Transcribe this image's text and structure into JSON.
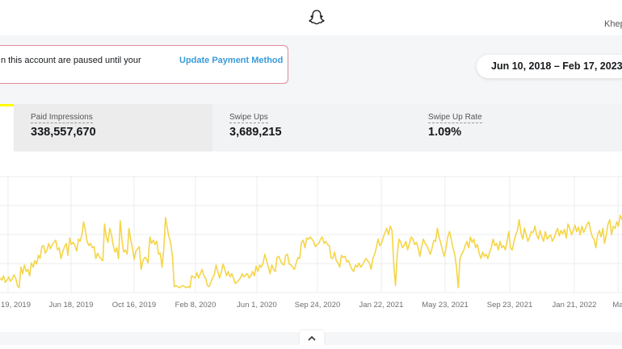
{
  "header": {
    "logo_icon": "snapchat-ghost-icon",
    "user_name": "Khep"
  },
  "alert": {
    "message": "n this account are paused until your",
    "link_label": "Update Payment Method",
    "border_color": "#e38a9a",
    "link_color": "#3a9bd9"
  },
  "date_range": {
    "label": "Jun 10, 2018 – Feb 17, 2023"
  },
  "metrics": [
    {
      "label": "Paid Impressions",
      "value": "338,557,670"
    },
    {
      "label": "Swipe Ups",
      "value": "3,689,215"
    },
    {
      "label": "Swipe Up Rate",
      "value": "1.09%"
    }
  ],
  "chart_data": {
    "type": "line",
    "line_color": "#f5d547",
    "grid": true,
    "x_ticks": [
      "19, 2019",
      "Jun 18, 2019",
      "Oct 16, 2019",
      "Feb 8, 2020",
      "Jun 1, 2020",
      "Sep 24, 2020",
      "Jan 22, 2021",
      "May 23, 2021",
      "Sep 23, 2021",
      "Jan 21, 2022",
      "Ma"
    ],
    "series": [
      {
        "values": [
          0.12,
          0.1,
          0.14,
          0.08,
          0.1,
          0.13,
          0.09,
          0.11,
          0.15,
          0.12,
          0.05,
          0.03,
          0.22,
          0.16,
          0.24,
          0.18,
          0.2,
          0.14,
          0.26,
          0.22,
          0.28,
          0.25,
          0.33,
          0.3,
          0.41,
          0.42,
          0.35,
          0.38,
          0.44,
          0.39,
          0.43,
          0.45,
          0.47,
          0.38,
          0.4,
          0.3,
          0.36,
          0.41,
          0.44,
          0.33,
          0.49,
          0.43,
          0.45,
          0.42,
          0.37,
          0.48,
          0.46,
          0.52,
          0.64,
          0.56,
          0.46,
          0.42,
          0.44,
          0.4,
          0.41,
          0.3,
          0.35,
          0.32,
          0.3,
          0.28,
          0.62,
          0.5,
          0.45,
          0.58,
          0.52,
          0.42,
          0.36,
          0.4,
          0.3,
          0.65,
          0.47,
          0.36,
          0.38,
          0.34,
          0.58,
          0.48,
          0.4,
          0.29,
          0.37,
          0.39,
          0.41,
          0.2,
          0.28,
          0.31,
          0.3,
          0.26,
          0.5,
          0.44,
          0.47,
          0.43,
          0.46,
          0.34,
          0.35,
          0.22,
          0.38,
          0.68,
          0.58,
          0.5,
          0.44,
          0.32,
          0.04,
          0.05,
          0.04,
          0.03,
          0.04,
          0.05,
          0.04,
          0.03,
          0.04,
          0.03,
          0.14,
          0.13,
          0.12,
          0.17,
          0.12,
          0.16,
          0.2,
          0.14,
          0.12,
          0.05,
          0.04,
          0.08,
          0.12,
          0.15,
          0.24,
          0.18,
          0.12,
          0.17,
          0.25,
          0.2,
          0.14,
          0.18,
          0.13,
          0.16,
          0.12,
          0.07,
          0.08,
          0.1,
          0.12,
          0.16,
          0.13,
          0.15,
          0.16,
          0.12,
          0.14,
          0.18,
          0.14,
          0.23,
          0.18,
          0.24,
          0.22,
          0.26,
          0.34,
          0.28,
          0.22,
          0.16,
          0.24,
          0.2,
          0.18,
          0.31,
          0.32,
          0.28,
          0.25,
          0.24,
          0.33,
          0.34,
          0.25,
          0.24,
          0.22,
          0.2,
          0.26,
          0.31,
          0.3,
          0.45,
          0.47,
          0.4,
          0.49,
          0.48,
          0.5,
          0.48,
          0.46,
          0.41,
          0.43,
          0.44,
          0.48,
          0.5,
          0.44,
          0.46,
          0.43,
          0.42,
          0.31,
          0.3,
          0.36,
          0.28,
          0.26,
          0.22,
          0.33,
          0.31,
          0.32,
          0.27,
          0.28,
          0.24,
          0.2,
          0.18,
          0.24,
          0.22,
          0.26,
          0.22,
          0.24,
          0.27,
          0.3,
          0.28,
          0.26,
          0.2,
          0.3,
          0.34,
          0.4,
          0.48,
          0.42,
          0.44,
          0.5,
          0.54,
          0.58,
          0.52,
          0.6,
          0.56,
          0.24,
          0.05,
          0.34,
          0.48,
          0.45,
          0.4,
          0.42,
          0.46,
          0.38,
          0.44,
          0.5,
          0.48,
          0.43,
          0.45,
          0.4,
          0.32,
          0.41,
          0.48,
          0.44,
          0.42,
          0.38,
          0.34,
          0.4,
          0.47,
          0.46,
          0.58,
          0.5,
          0.44,
          0.38,
          0.32,
          0.4,
          0.5,
          0.55,
          0.48,
          0.4,
          0.34,
          0.22,
          0.03,
          0.3,
          0.34,
          0.37,
          0.42,
          0.46,
          0.4,
          0.5,
          0.45,
          0.48,
          0.4,
          0.43,
          0.35,
          0.3,
          0.36,
          0.32,
          0.34,
          0.3,
          0.36,
          0.4,
          0.48,
          0.42,
          0.44,
          0.38,
          0.46,
          0.4,
          0.42,
          0.38,
          0.45,
          0.55,
          0.4,
          0.38,
          0.46,
          0.52,
          0.56,
          0.66,
          0.54,
          0.48,
          0.58,
          0.52,
          0.46,
          0.5,
          0.55,
          0.54,
          0.6,
          0.52,
          0.48,
          0.56,
          0.5,
          0.46,
          0.55,
          0.48,
          0.5,
          0.52,
          0.46,
          0.49,
          0.54,
          0.58,
          0.51,
          0.56,
          0.53,
          0.57,
          0.49,
          0.62,
          0.58,
          0.52,
          0.56,
          0.61,
          0.55,
          0.59,
          0.52,
          0.6,
          0.54,
          0.58,
          0.62,
          0.64,
          0.56,
          0.5,
          0.48,
          0.4,
          0.52,
          0.56,
          0.5,
          0.58,
          0.44,
          0.52,
          0.62,
          0.66,
          0.52,
          0.6,
          0.58,
          0.64,
          0.6,
          0.7,
          0.66
        ]
      }
    ]
  }
}
